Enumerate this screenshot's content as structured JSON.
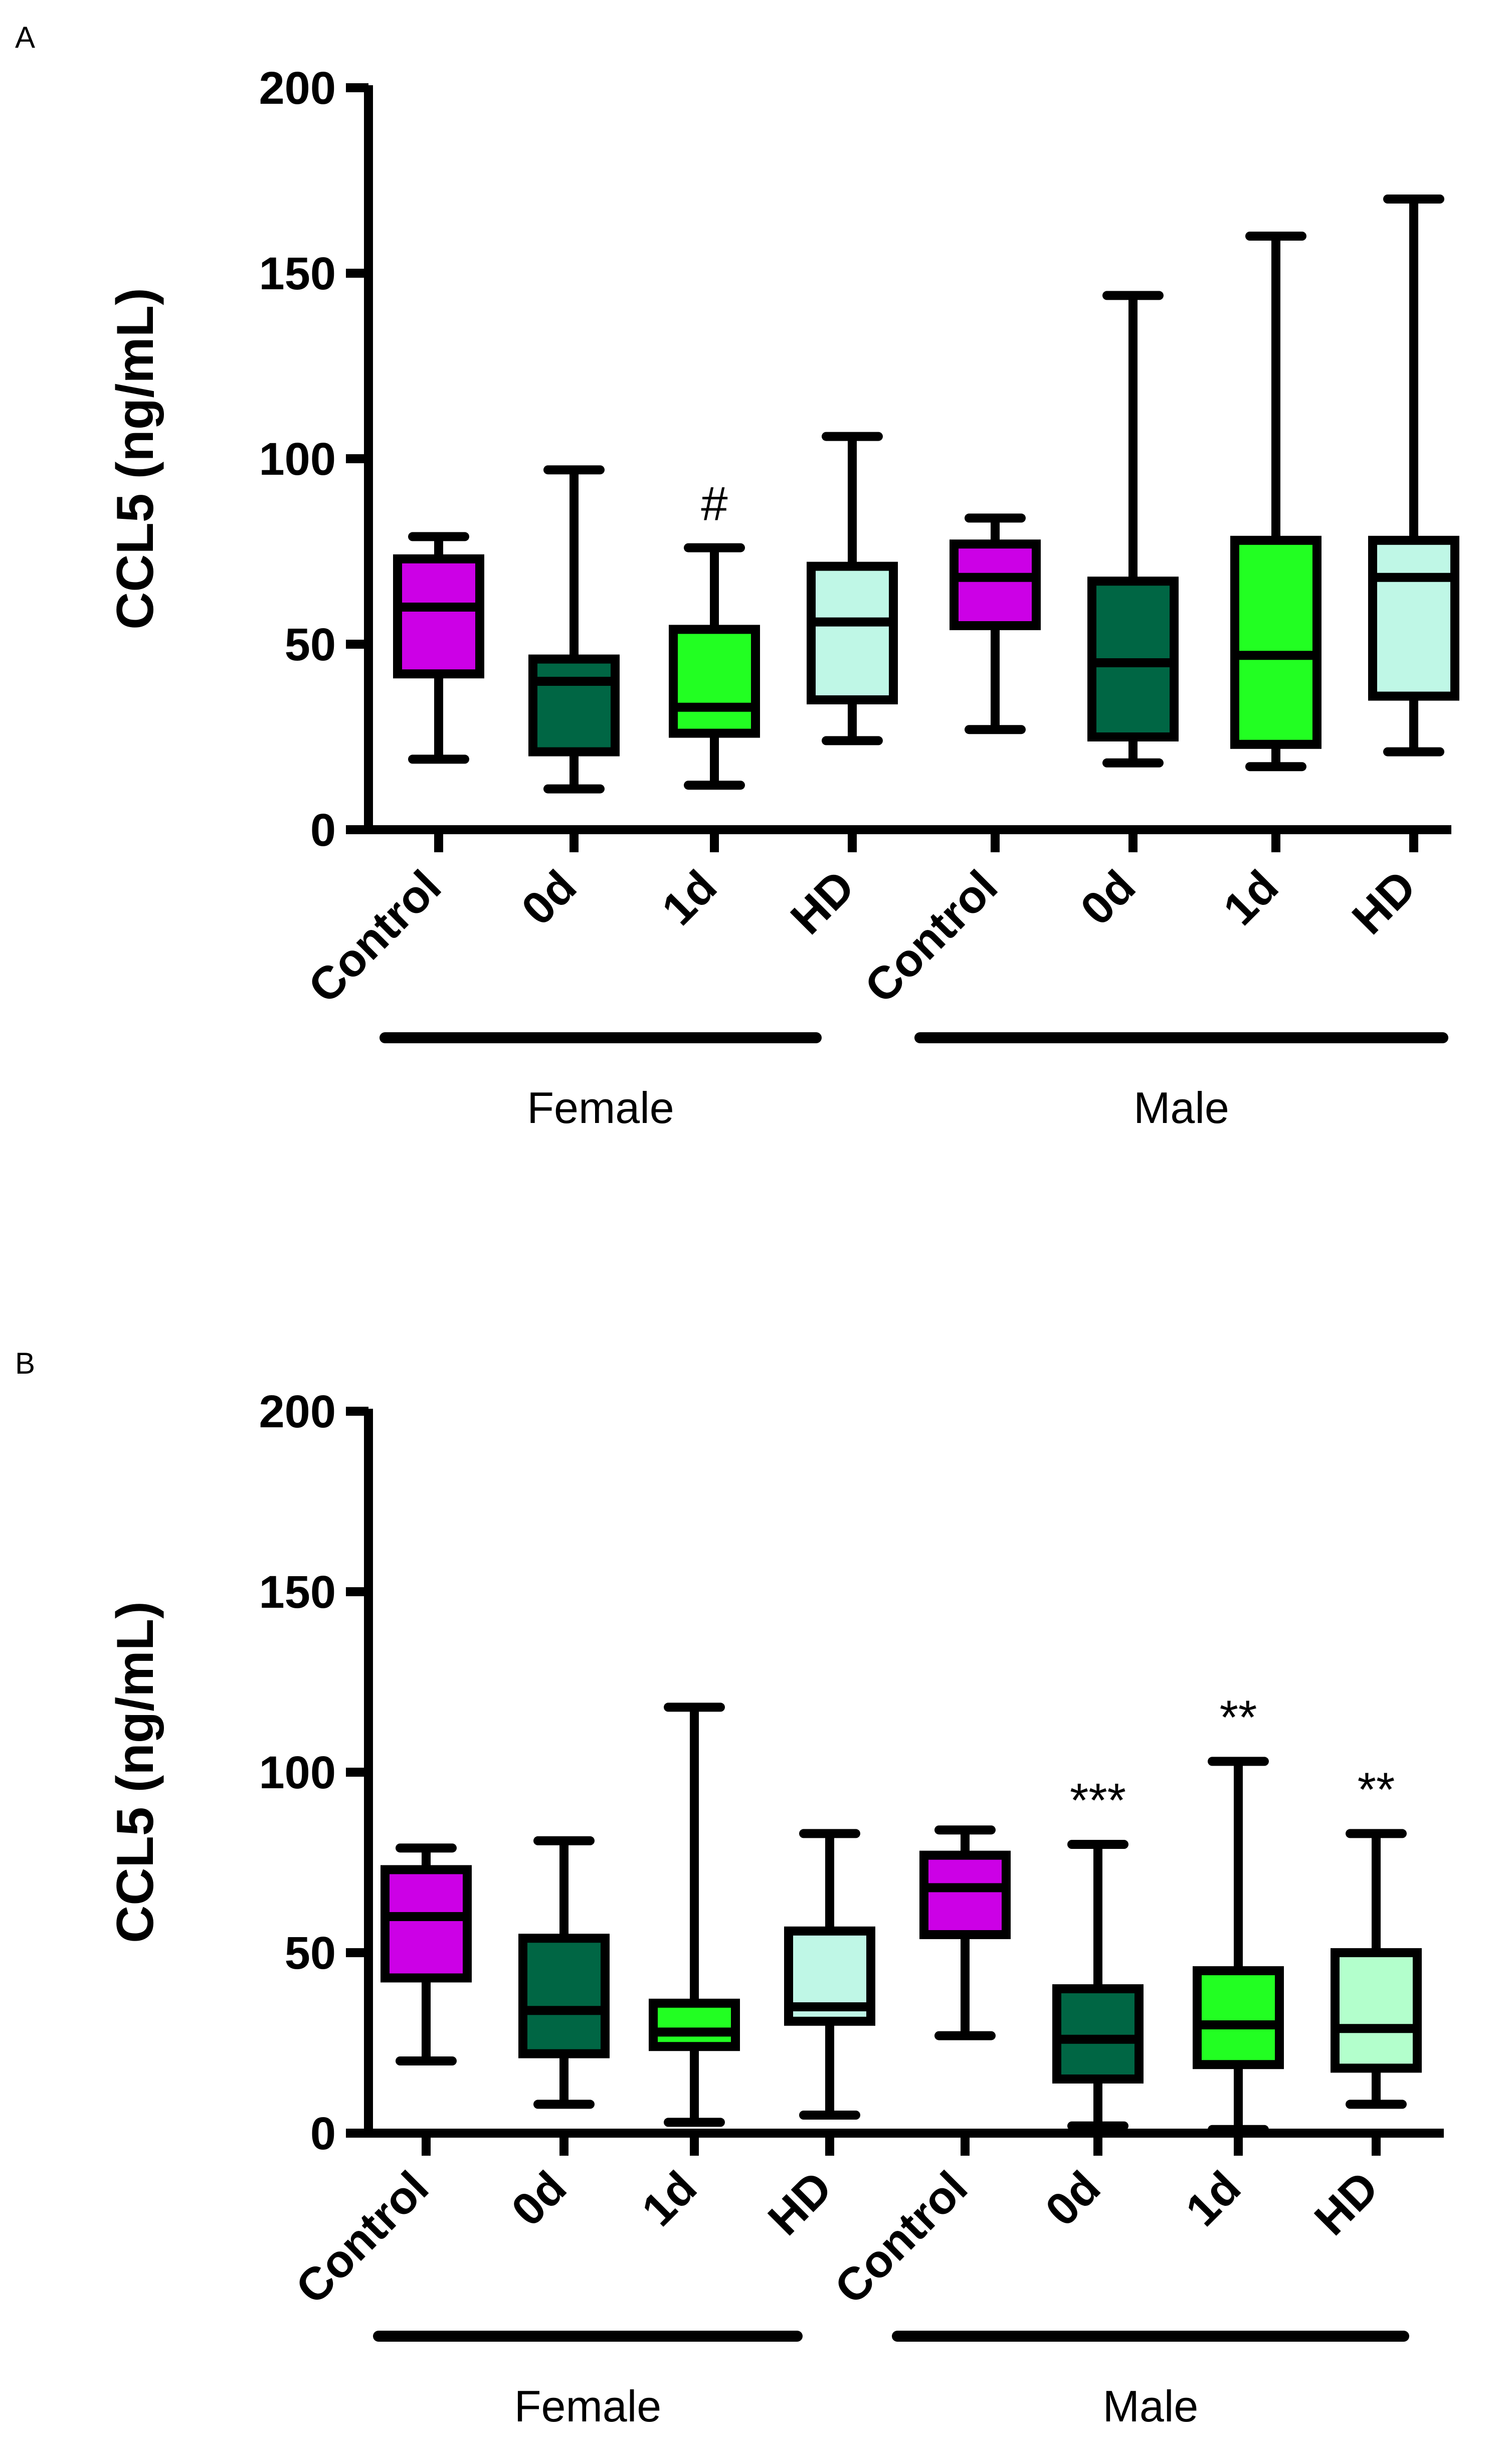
{
  "chart_data": [
    {
      "panel": "A",
      "type": "boxplot",
      "title": "",
      "xlabel": "",
      "ylabel": "CCL5 (ng/mL)",
      "ylim": [
        0,
        200
      ],
      "yticks": [
        0,
        50,
        100,
        150,
        200
      ],
      "categories": [
        "Control",
        "0d",
        "1d",
        "HD",
        "Control",
        "0d",
        "1d",
        "HD"
      ],
      "groups": [
        {
          "label": "Female",
          "members": [
            0,
            1,
            2,
            3
          ]
        },
        {
          "label": "Male",
          "members": [
            4,
            5,
            6,
            7
          ]
        }
      ],
      "boxes": [
        {
          "category": "Control",
          "group": "Female",
          "min": 19,
          "q1": 42,
          "median": 60,
          "q3": 73,
          "max": 79,
          "color": "#cc00e6",
          "annotation": ""
        },
        {
          "category": "0d",
          "group": "Female",
          "min": 11,
          "q1": 21,
          "median": 40,
          "q3": 46,
          "max": 97,
          "color": "#006644",
          "annotation": ""
        },
        {
          "category": "1d",
          "group": "Female",
          "min": 12,
          "q1": 26,
          "median": 33,
          "q3": 54,
          "max": 76,
          "color": "#22ff22",
          "annotation": "#"
        },
        {
          "category": "HD",
          "group": "Female",
          "min": 24,
          "q1": 35,
          "median": 56,
          "q3": 71,
          "max": 106,
          "color": "#bff7e6",
          "annotation": ""
        },
        {
          "category": "Control",
          "group": "Male",
          "min": 27,
          "q1": 55,
          "median": 68,
          "q3": 77,
          "max": 84,
          "color": "#cc00e6",
          "annotation": ""
        },
        {
          "category": "0d",
          "group": "Male",
          "min": 18,
          "q1": 25,
          "median": 45,
          "q3": 67,
          "max": 144,
          "color": "#006644",
          "annotation": ""
        },
        {
          "category": "1d",
          "group": "Male",
          "min": 17,
          "q1": 23,
          "median": 47,
          "q3": 78,
          "max": 160,
          "color": "#22ff22",
          "annotation": ""
        },
        {
          "category": "HD",
          "group": "Male",
          "min": 21,
          "q1": 36,
          "median": 68,
          "q3": 78,
          "max": 170,
          "color": "#bff7e6",
          "annotation": ""
        }
      ]
    },
    {
      "panel": "B",
      "type": "boxplot",
      "title": "",
      "xlabel": "",
      "ylabel": "CCL5 (ng/mL)",
      "ylim": [
        0,
        200
      ],
      "yticks": [
        0,
        50,
        100,
        150,
        200
      ],
      "categories": [
        "Control",
        "0d",
        "1d",
        "HD",
        "Control",
        "0d",
        "1d",
        "HD"
      ],
      "groups": [
        {
          "label": "Female",
          "members": [
            0,
            1,
            2,
            3
          ]
        },
        {
          "label": "Male",
          "members": [
            4,
            5,
            6,
            7
          ]
        }
      ],
      "boxes": [
        {
          "category": "Control",
          "group": "Female",
          "min": 20,
          "q1": 43,
          "median": 60,
          "q3": 73,
          "max": 79,
          "color": "#cc00e6",
          "annotation": ""
        },
        {
          "category": "0d",
          "group": "Female",
          "min": 8,
          "q1": 22,
          "median": 34,
          "q3": 54,
          "max": 81,
          "color": "#006644",
          "annotation": ""
        },
        {
          "category": "1d",
          "group": "Female",
          "min": 3,
          "q1": 24,
          "median": 28,
          "q3": 36,
          "max": 118,
          "color": "#22ff22",
          "annotation": ""
        },
        {
          "category": "HD",
          "group": "Female",
          "min": 5,
          "q1": 31,
          "median": 35,
          "q3": 56,
          "max": 83,
          "color": "#bff7e6",
          "annotation": ""
        },
        {
          "category": "Control",
          "group": "Male",
          "min": 27,
          "q1": 55,
          "median": 68,
          "q3": 77,
          "max": 84,
          "color": "#cc00e6",
          "annotation": ""
        },
        {
          "category": "0d",
          "group": "Male",
          "min": 2,
          "q1": 15,
          "median": 26,
          "q3": 40,
          "max": 80,
          "color": "#006644",
          "annotation": "***"
        },
        {
          "category": "1d",
          "group": "Male",
          "min": 1,
          "q1": 19,
          "median": 30,
          "q3": 45,
          "max": 103,
          "color": "#22ff22",
          "annotation": "**"
        },
        {
          "category": "HD",
          "group": "Male",
          "min": 8,
          "q1": 18,
          "median": 29,
          "q3": 50,
          "max": 83,
          "color": "#b3ffcc",
          "annotation": "**"
        }
      ]
    }
  ]
}
